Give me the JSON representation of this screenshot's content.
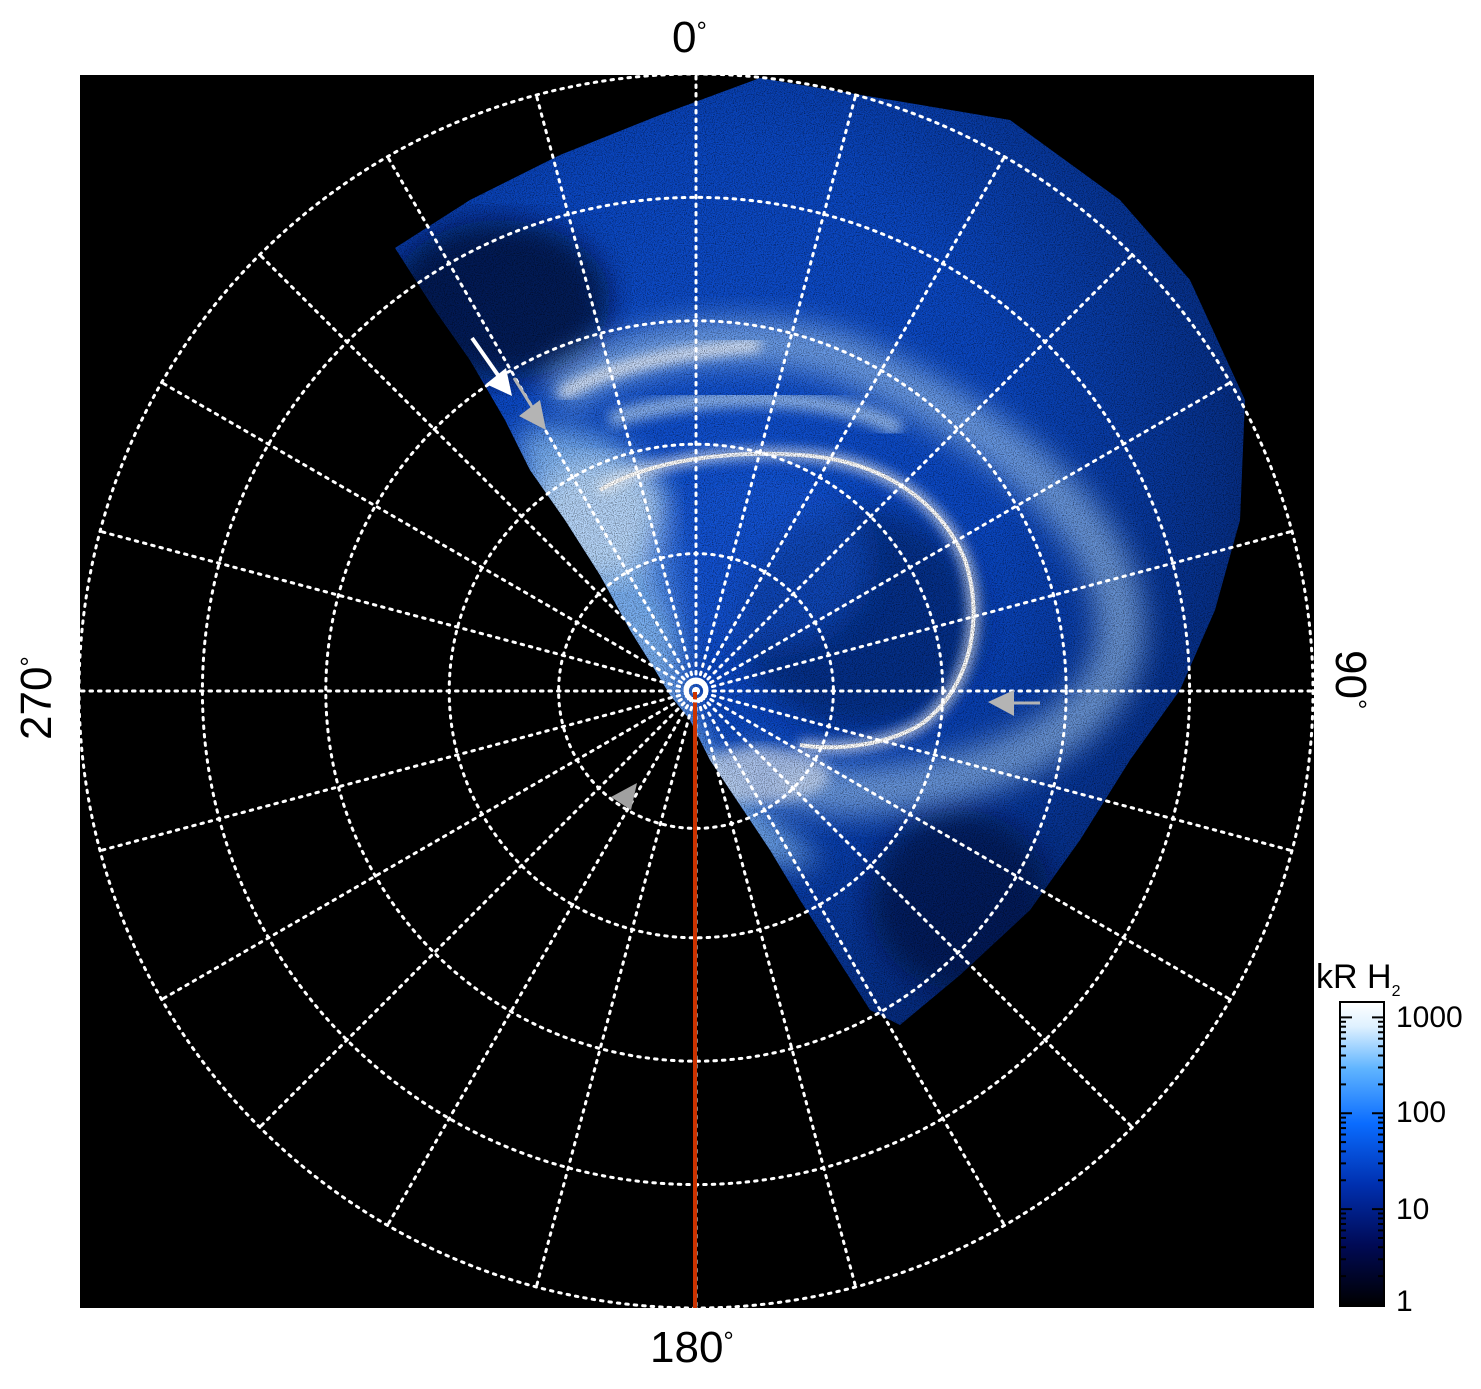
{
  "axis_labels": {
    "top": "0",
    "bottom": "180",
    "left": "270",
    "right": "90",
    "degree_symbol": "°"
  },
  "colorbar": {
    "title_main": "kR H",
    "title_sub": "2",
    "ticks": [
      "1000",
      "100",
      "10",
      "1"
    ],
    "colors": [
      "#000000",
      "#000a55",
      "#0030b0",
      "#0a6cff",
      "#5fb4ff",
      "#dff1ff",
      "#ffffff"
    ]
  },
  "colors": {
    "background": "#000000",
    "grid": "#ffffff",
    "meridian_line": "#cc3300",
    "arrow_white": "#ffffff",
    "arrow_gray": "#b4b4b4"
  }
}
